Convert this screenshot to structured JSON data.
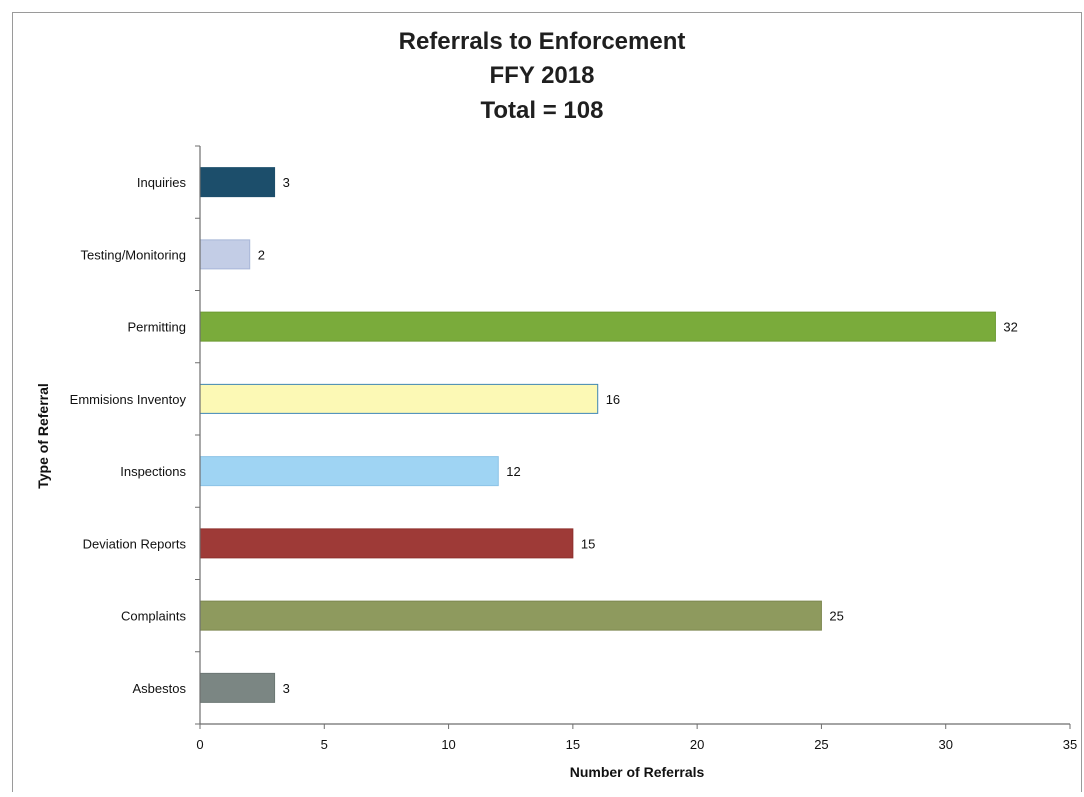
{
  "chart_data": {
    "type": "bar",
    "orientation": "horizontal",
    "title": [
      "Referrals to Enforcement",
      "FFY 2018",
      "Total = 108"
    ],
    "xlabel": "Number of Referrals",
    "ylabel": "Type of Referral",
    "categories": [
      "Inquiries",
      "Testing/Monitoring",
      "Permitting",
      "Emmisions Inventoy",
      "Inspections",
      "Deviation Reports",
      "Complaints",
      "Asbestos"
    ],
    "values": [
      3,
      2,
      32,
      16,
      12,
      15,
      25,
      3
    ],
    "colors": [
      "#1c4e6b",
      "#c3cde6",
      "#7aab3b",
      "#fcf9b5",
      "#9fd4f3",
      "#9e3a37",
      "#8e9a5e",
      "#7b8683"
    ],
    "bar_border_colors": [
      "#1c4e6b",
      "#a8b6d8",
      "#6c9a32",
      "#3e86b4",
      "#8cc3e6",
      "#8e302d",
      "#7d8850",
      "#6c7774"
    ],
    "xlim": [
      0,
      35
    ],
    "xticks": [
      0,
      5,
      10,
      15,
      20,
      25,
      30,
      35
    ],
    "data_labels": true,
    "grid": false,
    "legend": "none"
  }
}
